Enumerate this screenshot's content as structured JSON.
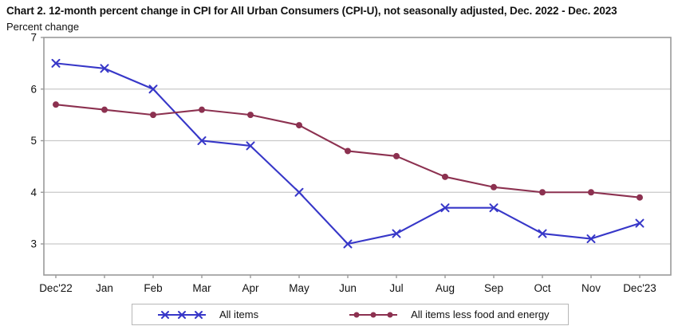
{
  "page": {
    "title": "Chart 2. 12-month percent change in CPI for All Urban Consumers (CPI-U), not seasonally adjusted, Dec. 2022 - Dec. 2023",
    "subtitle": "Percent change"
  },
  "colors": {
    "all_items": "#3737c8",
    "core": "#8c3150",
    "grid": "#c9c9c9",
    "axis_border": "#9a9a9a",
    "tick": "#9a9a9a",
    "text": "#111111"
  },
  "legend": {
    "items": [
      {
        "label": "All items",
        "marker": "x",
        "color_key": "all_items"
      },
      {
        "label": "All items less food and energy",
        "marker": "dot",
        "color_key": "core"
      }
    ]
  },
  "chart_data": {
    "type": "line",
    "title": "Chart 2. 12-month percent change in CPI for All Urban Consumers (CPI-U), not seasonally adjusted, Dec. 2022 - Dec. 2023",
    "ylabel": "Percent change",
    "xlabel": "",
    "categories": [
      "Dec'22",
      "Jan",
      "Feb",
      "Mar",
      "Apr",
      "May",
      "Jun",
      "Jul",
      "Aug",
      "Sep",
      "Oct",
      "Nov",
      "Dec'23"
    ],
    "series": [
      {
        "name": "All items",
        "marker": "x",
        "color_key": "all_items",
        "values": [
          6.5,
          6.4,
          6.0,
          5.0,
          4.9,
          4.0,
          3.0,
          3.2,
          3.7,
          3.7,
          3.2,
          3.1,
          3.4
        ]
      },
      {
        "name": "All items less food and energy",
        "marker": "dot",
        "color_key": "core",
        "values": [
          5.7,
          5.6,
          5.5,
          5.6,
          5.5,
          5.3,
          4.8,
          4.7,
          4.3,
          4.1,
          4.0,
          4.0,
          3.9
        ]
      }
    ],
    "y_ticks": [
      3,
      4,
      5,
      6,
      7
    ],
    "ylim": [
      2.4,
      7
    ],
    "grid": true,
    "legend_position": "bottom"
  }
}
